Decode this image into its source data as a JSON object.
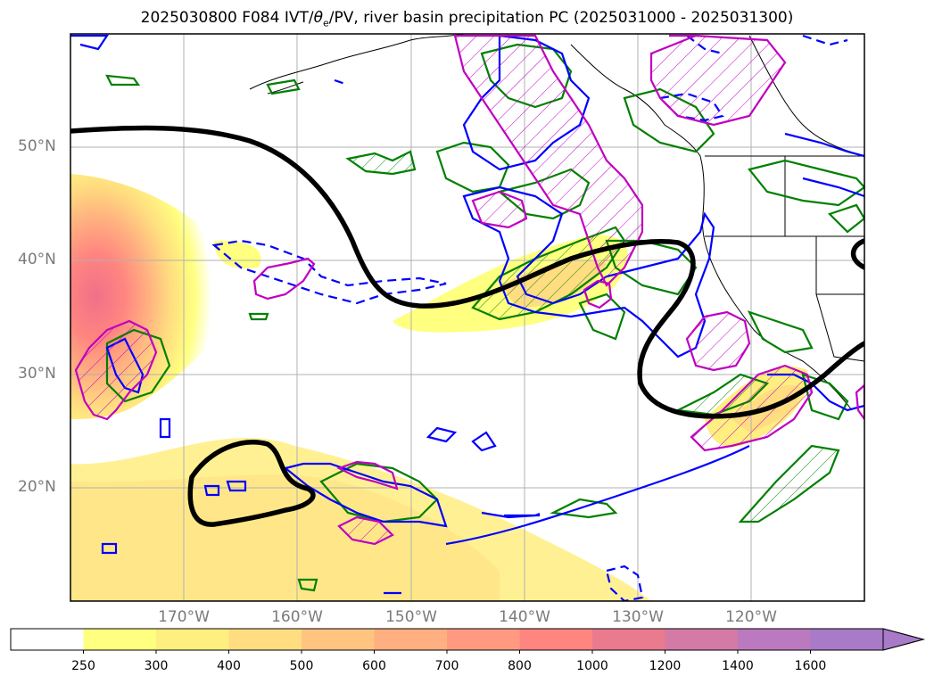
{
  "title": "2025030800 F084 IVT/θe/PV, river basin precipitation PC (2025031000 - 2025031300)",
  "title_parts": {
    "main": "2025030800 F084 IVT/",
    "theta": "θ",
    "sub": "e",
    "rest": "/PV, river basin precipitation PC (2025031000 - 2025031300)"
  },
  "lat_labels": [
    "50°N",
    "40°N",
    "30°N",
    "20°N"
  ],
  "lon_labels": [
    "170°W",
    "160°W",
    "150°W",
    "140°W",
    "130°W",
    "120°W"
  ],
  "colorbar": {
    "ticks": [
      "250",
      "300",
      "400",
      "500",
      "600",
      "700",
      "800",
      "1000",
      "1200",
      "1400",
      "1600"
    ],
    "colors": [
      "#ffffff",
      "#ffff80",
      "#ffee80",
      "#ffdd80",
      "#ffc580",
      "#ffaf80",
      "#ff9a80",
      "#ff8580",
      "#ea7a8e",
      "#d47aa6",
      "#bb7ac0",
      "#a87ac8"
    ]
  },
  "colors": {
    "ivt_contour": "#000000",
    "blue_contour": "#0000ff",
    "green_contour": "#008000",
    "magenta_contour": "#c000c0",
    "grid": "#b0b0b0"
  }
}
